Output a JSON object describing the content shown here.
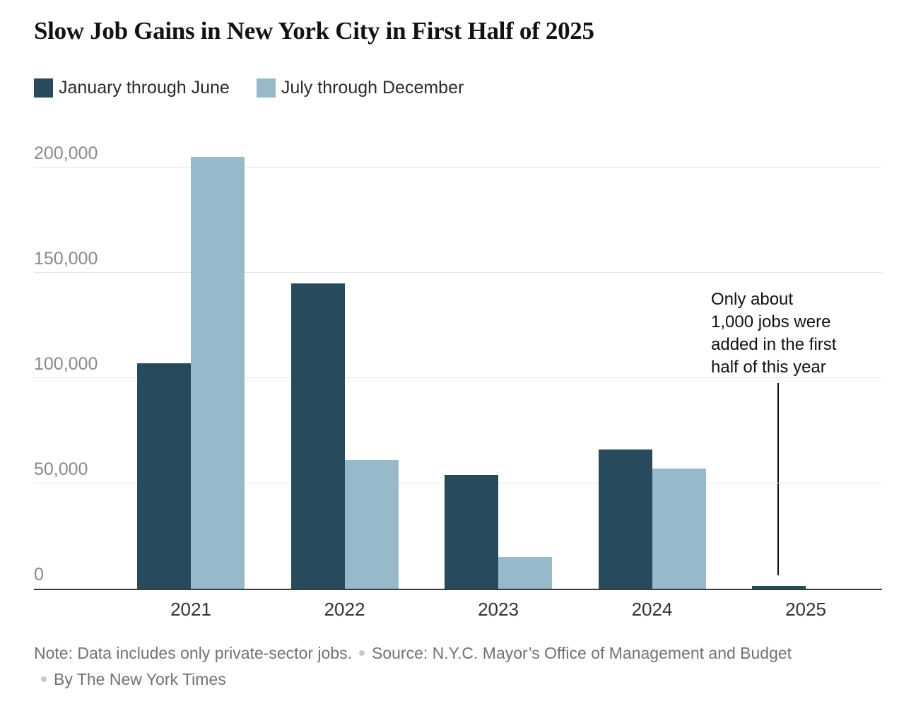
{
  "title": "Slow Job Gains in New York City in First Half of 2025",
  "legend": {
    "items": [
      {
        "label": "January through June",
        "color": "#274b5c"
      },
      {
        "label": "July through December",
        "color": "#97bacb"
      }
    ]
  },
  "chart_data": {
    "type": "bar",
    "title": "Slow Job Gains in New York City in First Half of 2025",
    "categories": [
      "2021",
      "2022",
      "2023",
      "2024",
      "2025"
    ],
    "series": [
      {
        "name": "January through June",
        "color": "#274b5c",
        "values": [
          107000,
          145000,
          54000,
          66000,
          1000
        ]
      },
      {
        "name": "July through December",
        "color": "#97bacb",
        "values": [
          205000,
          61000,
          15000,
          57000,
          null
        ]
      }
    ],
    "xlabel": "",
    "ylabel": "",
    "ylim": [
      0,
      220000
    ],
    "yticks": [
      0,
      50000,
      100000,
      150000,
      200000
    ],
    "ytick_labels": [
      "0",
      "50,000",
      "100,000",
      "150,000",
      "200,000"
    ],
    "grid": "horizontal",
    "legend_position": "top-left",
    "annotation": {
      "text": "Only about 1,000 jobs were added in the first half of this year",
      "lines": [
        "Only about",
        "1,000 jobs were",
        "added in the first",
        "half of this year"
      ],
      "points_to": "2025 January through June bar"
    }
  },
  "footer": {
    "note": "Note: Data includes only private-sector jobs.",
    "source": "Source: N.Y.C. Mayor’s Office of Management and Budget",
    "byline": "By The New York Times"
  }
}
